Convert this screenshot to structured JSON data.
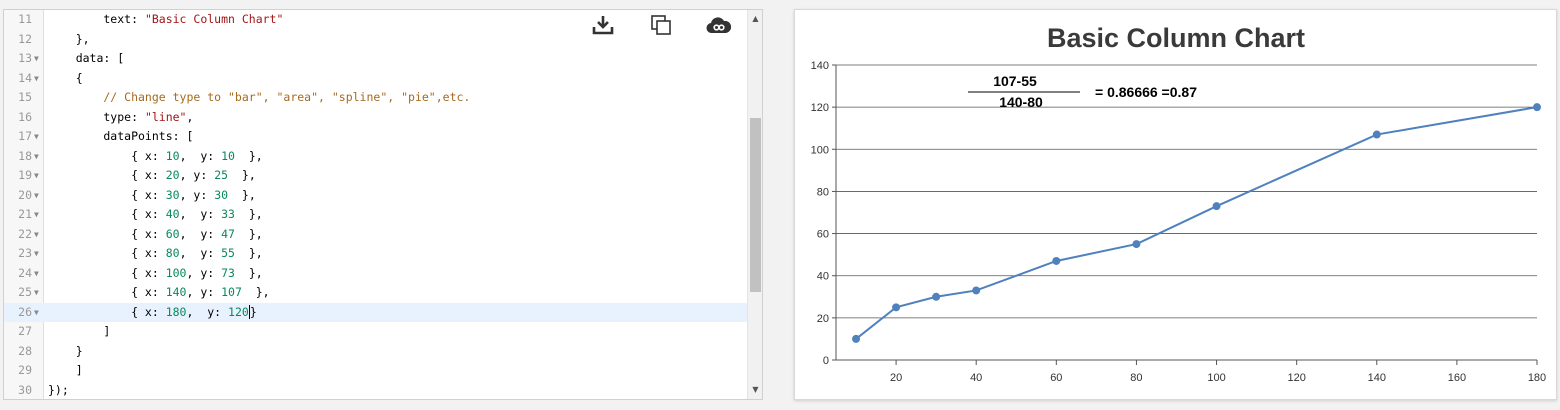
{
  "editor": {
    "tools": [
      {
        "name": "download-icon"
      },
      {
        "name": "copy-icon"
      },
      {
        "name": "share-cloud-icon"
      }
    ],
    "lines": [
      {
        "n": "11",
        "fold": false,
        "tokens": [
          {
            "t": "        text: ",
            "c": ""
          },
          {
            "t": "\"Basic Column Chart\"",
            "c": "str"
          }
        ]
      },
      {
        "n": "12",
        "fold": false,
        "tokens": [
          {
            "t": "    },",
            "c": ""
          }
        ]
      },
      {
        "n": "13",
        "fold": true,
        "tokens": [
          {
            "t": "    data: [",
            "c": ""
          }
        ]
      },
      {
        "n": "14",
        "fold": true,
        "tokens": [
          {
            "t": "    {",
            "c": ""
          }
        ]
      },
      {
        "n": "15",
        "fold": false,
        "tokens": [
          {
            "t": "        // Change type to \"bar\", \"area\", \"spline\", \"pie\",etc.",
            "c": "cmt"
          }
        ]
      },
      {
        "n": "16",
        "fold": false,
        "tokens": [
          {
            "t": "        type: ",
            "c": ""
          },
          {
            "t": "\"line\"",
            "c": "str"
          },
          {
            "t": ",",
            "c": ""
          }
        ]
      },
      {
        "n": "17",
        "fold": true,
        "tokens": [
          {
            "t": "        dataPoints: [",
            "c": ""
          }
        ]
      },
      {
        "n": "18",
        "fold": true,
        "tokens": [
          {
            "t": "            { x: ",
            "c": ""
          },
          {
            "t": "10",
            "c": "num"
          },
          {
            "t": ",  y: ",
            "c": ""
          },
          {
            "t": "10",
            "c": "num"
          },
          {
            "t": "  },",
            "c": ""
          }
        ]
      },
      {
        "n": "19",
        "fold": true,
        "tokens": [
          {
            "t": "            { x: ",
            "c": ""
          },
          {
            "t": "20",
            "c": "num"
          },
          {
            "t": ", y: ",
            "c": ""
          },
          {
            "t": "25",
            "c": "num"
          },
          {
            "t": "  },",
            "c": ""
          }
        ]
      },
      {
        "n": "20",
        "fold": true,
        "tokens": [
          {
            "t": "            { x: ",
            "c": ""
          },
          {
            "t": "30",
            "c": "num"
          },
          {
            "t": ", y: ",
            "c": ""
          },
          {
            "t": "30",
            "c": "num"
          },
          {
            "t": "  },",
            "c": ""
          }
        ]
      },
      {
        "n": "21",
        "fold": true,
        "tokens": [
          {
            "t": "            { x: ",
            "c": ""
          },
          {
            "t": "40",
            "c": "num"
          },
          {
            "t": ",  y: ",
            "c": ""
          },
          {
            "t": "33",
            "c": "num"
          },
          {
            "t": "  },",
            "c": ""
          }
        ]
      },
      {
        "n": "22",
        "fold": true,
        "tokens": [
          {
            "t": "            { x: ",
            "c": ""
          },
          {
            "t": "60",
            "c": "num"
          },
          {
            "t": ",  y: ",
            "c": ""
          },
          {
            "t": "47",
            "c": "num"
          },
          {
            "t": "  },",
            "c": ""
          }
        ]
      },
      {
        "n": "23",
        "fold": true,
        "tokens": [
          {
            "t": "            { x: ",
            "c": ""
          },
          {
            "t": "80",
            "c": "num"
          },
          {
            "t": ",  y: ",
            "c": ""
          },
          {
            "t": "55",
            "c": "num"
          },
          {
            "t": "  },",
            "c": ""
          }
        ]
      },
      {
        "n": "24",
        "fold": true,
        "tokens": [
          {
            "t": "            { x: ",
            "c": ""
          },
          {
            "t": "100",
            "c": "num"
          },
          {
            "t": ", y: ",
            "c": ""
          },
          {
            "t": "73",
            "c": "num"
          },
          {
            "t": "  },",
            "c": ""
          }
        ]
      },
      {
        "n": "25",
        "fold": true,
        "tokens": [
          {
            "t": "            { x: ",
            "c": ""
          },
          {
            "t": "140",
            "c": "num"
          },
          {
            "t": ", y: ",
            "c": ""
          },
          {
            "t": "107",
            "c": "num"
          },
          {
            "t": "  },",
            "c": ""
          }
        ]
      },
      {
        "n": "26",
        "fold": true,
        "active": true,
        "tokens": [
          {
            "t": "            { x: ",
            "c": ""
          },
          {
            "t": "180",
            "c": "num"
          },
          {
            "t": ",  y: ",
            "c": ""
          },
          {
            "t": "120",
            "c": "num"
          },
          {
            "t": "CURSOR",
            "c": "cursor"
          },
          {
            "t": "}",
            "c": ""
          }
        ]
      },
      {
        "n": "27",
        "fold": false,
        "tokens": [
          {
            "t": "        ]",
            "c": ""
          }
        ]
      },
      {
        "n": "28",
        "fold": false,
        "tokens": [
          {
            "t": "    }",
            "c": ""
          }
        ]
      },
      {
        "n": "29",
        "fold": false,
        "tokens": [
          {
            "t": "    ]",
            "c": ""
          }
        ]
      },
      {
        "n": "30",
        "fold": false,
        "tokens": [
          {
            "t": "});",
            "c": ""
          }
        ]
      }
    ]
  },
  "chart_data": {
    "type": "line",
    "title": "Basic Column Chart",
    "xlabel": "",
    "ylabel": "",
    "x_ticks": [
      20,
      40,
      60,
      80,
      100,
      120,
      140,
      160,
      180
    ],
    "y_ticks": [
      0,
      20,
      40,
      60,
      80,
      100,
      120,
      140
    ],
    "xlim": [
      5,
      180
    ],
    "ylim": [
      0,
      140
    ],
    "grid": "horizontal",
    "series": [
      {
        "x": [
          10,
          20,
          30,
          40,
          60,
          80,
          100,
          140,
          180
        ],
        "y": [
          10,
          25,
          30,
          33,
          47,
          55,
          73,
          107,
          120
        ]
      }
    ],
    "color": "#4f81bd",
    "annotation": {
      "numerator": "107-55",
      "denominator": "140-80",
      "result": "= 0.86666 =0.87"
    }
  }
}
